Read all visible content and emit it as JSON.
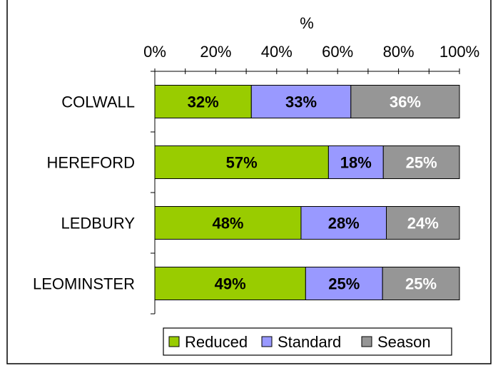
{
  "chart_data": {
    "type": "bar",
    "orientation": "horizontal",
    "stacked": "percent",
    "title": "",
    "xlabel": "%",
    "ylabel": "",
    "xlim": [
      0,
      100
    ],
    "x_ticks": [
      "0%",
      "20%",
      "40%",
      "60%",
      "80%",
      "100%"
    ],
    "x_axis_position": "top",
    "grid": false,
    "legend_position": "bottom",
    "categories": [
      "COLWALL",
      "HEREFORD",
      "LEDBURY",
      "LEOMINSTER"
    ],
    "series": [
      {
        "name": "Reduced",
        "color": "#99CC00",
        "label_color": "#000000",
        "values": [
          32,
          57,
          48,
          49
        ],
        "labels": [
          "32%",
          "57%",
          "48%",
          "49%"
        ]
      },
      {
        "name": "Standard",
        "color": "#9999FF",
        "label_color": "#000000",
        "values": [
          33,
          18,
          28,
          25
        ],
        "labels": [
          "33%",
          "18%",
          "28%",
          "25%"
        ]
      },
      {
        "name": "Season",
        "color": "#969696",
        "label_color": "#FFFFFF",
        "values": [
          36,
          25,
          24,
          25
        ],
        "labels": [
          "36%",
          "25%",
          "24%",
          "25%"
        ]
      }
    ]
  }
}
